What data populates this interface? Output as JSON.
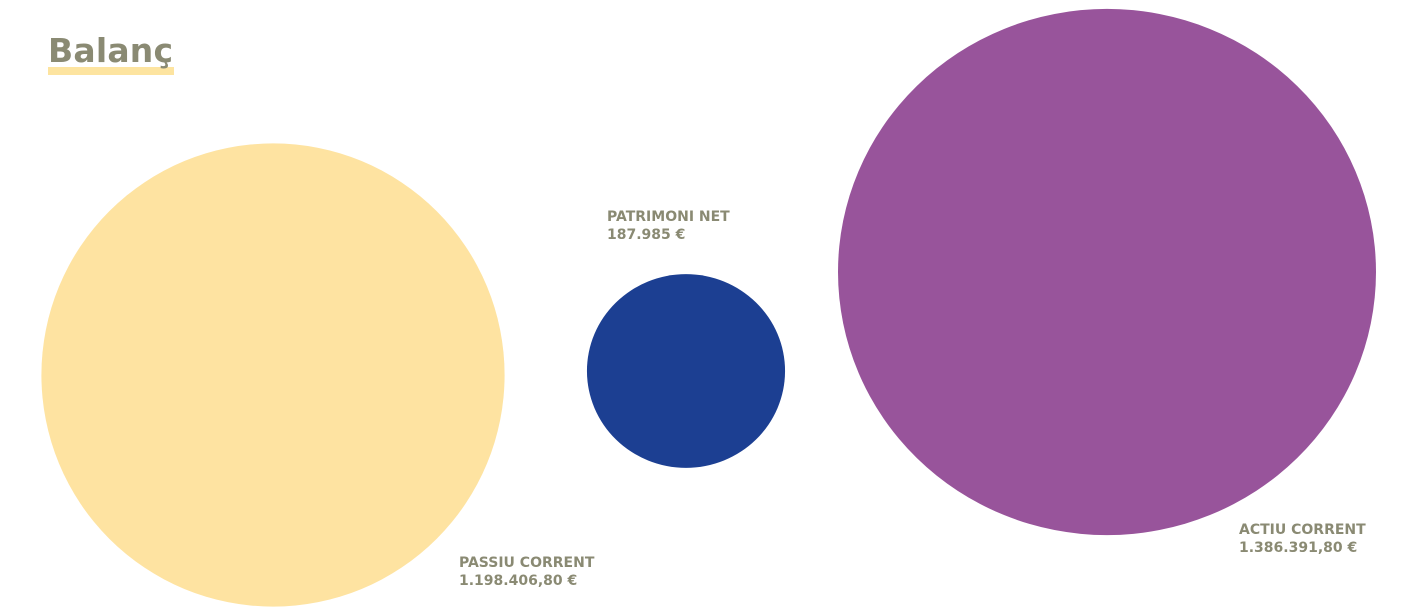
{
  "page": {
    "title": "Balanç"
  },
  "chart_data": {
    "type": "bubble",
    "title": "Balanç",
    "bubbles": [
      {
        "name": "PASSIU CORRENT",
        "value": 1198406.8,
        "value_label": "1.198.406,80 €",
        "color": "#fee3a1"
      },
      {
        "name": "PATRIMONI NET",
        "value": 187985,
        "value_label": "187.985 €",
        "color": "#1c3f92"
      },
      {
        "name": "ACTIU CORRENT",
        "value": 1386391.8,
        "value_label": "1.386.391,80 €",
        "color": "#98549b"
      }
    ]
  }
}
